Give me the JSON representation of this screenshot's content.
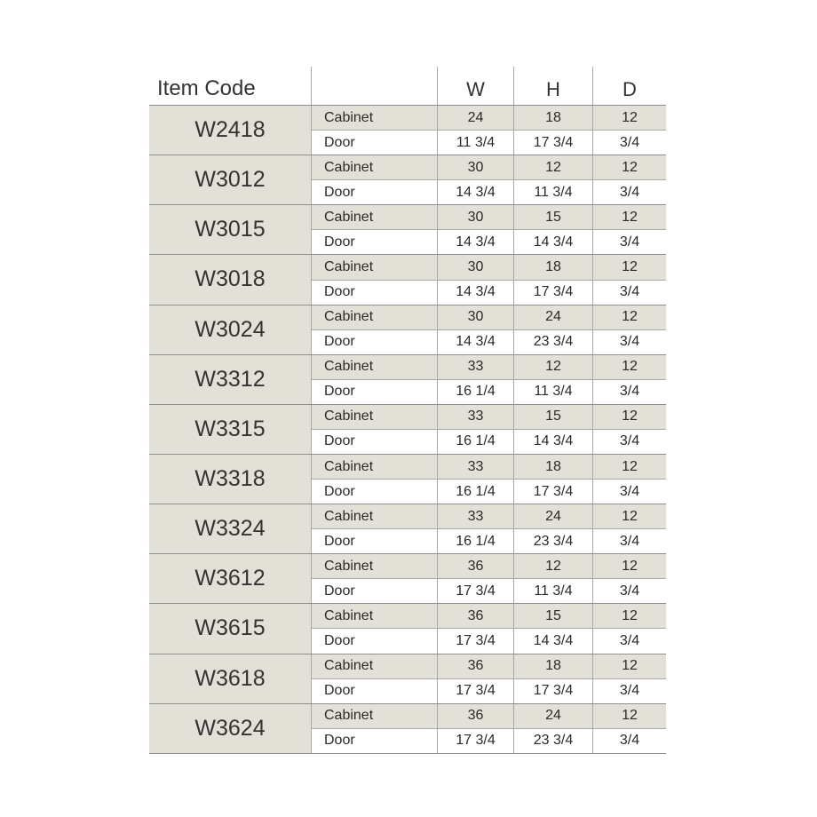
{
  "header": {
    "item_code": "Item Code",
    "blank": "",
    "w": "W",
    "h": "H",
    "d": "D"
  },
  "items": [
    {
      "code": "W2418",
      "cabinet": {
        "label": "Cabinet",
        "w": "24",
        "h": "18",
        "d": "12"
      },
      "door": {
        "label": "Door",
        "w": "11 3/4",
        "h": "17 3/4",
        "d": "3/4"
      }
    },
    {
      "code": "W3012",
      "cabinet": {
        "label": "Cabinet",
        "w": "30",
        "h": "12",
        "d": "12"
      },
      "door": {
        "label": "Door",
        "w": "14 3/4",
        "h": "11 3/4",
        "d": "3/4"
      }
    },
    {
      "code": "W3015",
      "cabinet": {
        "label": "Cabinet",
        "w": "30",
        "h": "15",
        "d": "12"
      },
      "door": {
        "label": "Door",
        "w": "14 3/4",
        "h": "14 3/4",
        "d": "3/4"
      }
    },
    {
      "code": "W3018",
      "cabinet": {
        "label": "Cabinet",
        "w": "30",
        "h": "18",
        "d": "12"
      },
      "door": {
        "label": "Door",
        "w": "14 3/4",
        "h": "17 3/4",
        "d": "3/4"
      }
    },
    {
      "code": "W3024",
      "cabinet": {
        "label": "Cabinet",
        "w": "30",
        "h": "24",
        "d": "12"
      },
      "door": {
        "label": "Door",
        "w": "14 3/4",
        "h": "23 3/4",
        "d": "3/4"
      }
    },
    {
      "code": "W3312",
      "cabinet": {
        "label": "Cabinet",
        "w": "33",
        "h": "12",
        "d": "12"
      },
      "door": {
        "label": "Door",
        "w": "16 1/4",
        "h": "11 3/4",
        "d": "3/4"
      }
    },
    {
      "code": "W3315",
      "cabinet": {
        "label": "Cabinet",
        "w": "33",
        "h": "15",
        "d": "12"
      },
      "door": {
        "label": "Door",
        "w": "16 1/4",
        "h": "14 3/4",
        "d": "3/4"
      }
    },
    {
      "code": "W3318",
      "cabinet": {
        "label": "Cabinet",
        "w": "33",
        "h": "18",
        "d": "12"
      },
      "door": {
        "label": "Door",
        "w": "16 1/4",
        "h": "17 3/4",
        "d": "3/4"
      }
    },
    {
      "code": "W3324",
      "cabinet": {
        "label": "Cabinet",
        "w": "33",
        "h": "24",
        "d": "12"
      },
      "door": {
        "label": "Door",
        "w": "16 1/4",
        "h": "23 3/4",
        "d": "3/4"
      }
    },
    {
      "code": "W3612",
      "cabinet": {
        "label": "Cabinet",
        "w": "36",
        "h": "12",
        "d": "12"
      },
      "door": {
        "label": "Door",
        "w": "17 3/4",
        "h": "11 3/4",
        "d": "3/4"
      }
    },
    {
      "code": "W3615",
      "cabinet": {
        "label": "Cabinet",
        "w": "36",
        "h": "15",
        "d": "12"
      },
      "door": {
        "label": "Door",
        "w": "17 3/4",
        "h": "14 3/4",
        "d": "3/4"
      }
    },
    {
      "code": "W3618",
      "cabinet": {
        "label": "Cabinet",
        "w": "36",
        "h": "18",
        "d": "12"
      },
      "door": {
        "label": "Door",
        "w": "17 3/4",
        "h": "17 3/4",
        "d": "3/4"
      }
    },
    {
      "code": "W3624",
      "cabinet": {
        "label": "Cabinet",
        "w": "36",
        "h": "24",
        "d": "12"
      },
      "door": {
        "label": "Door",
        "w": "17 3/4",
        "h": "23 3/4",
        "d": "3/4"
      }
    }
  ]
}
